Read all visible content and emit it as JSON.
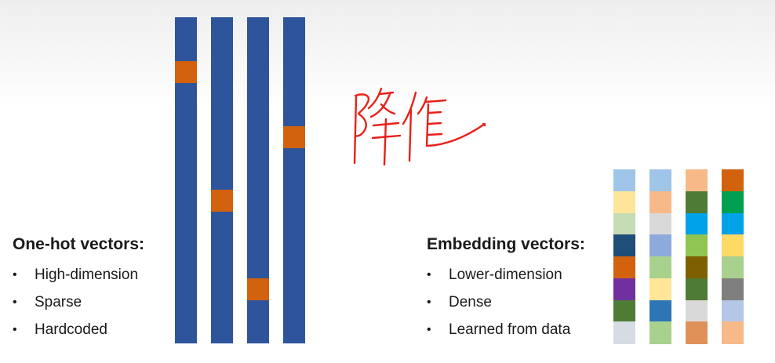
{
  "onehot": {
    "title": "One-hot vectors:",
    "bullets": [
      "High-dimension",
      "Sparse",
      "Hardcoded"
    ],
    "base_color": "#2e549b",
    "hot_color": "#d3620e",
    "hot_positions": [
      0.135,
      0.53,
      0.8,
      0.335
    ]
  },
  "embedding": {
    "title": "Embedding vectors:",
    "bullets": [
      "Lower-dimension",
      "Dense",
      "Learned from data"
    ],
    "columns": [
      [
        "#9fc5e8",
        "#ffe599",
        "#c6dcb4",
        "#1f4e79",
        "#d3620e",
        "#7030a0",
        "#4f7c34",
        "#d6dce4"
      ],
      [
        "#9fc5e8",
        "#f8b988",
        "#d9d9d9",
        "#8eaadb",
        "#a9d18e",
        "#ffe699",
        "#2e75b6",
        "#a9d18e"
      ],
      [
        "#f8b988",
        "#4f7c34",
        "#00a2e8",
        "#8fc550",
        "#7f6000",
        "#4f7c34",
        "#d9d9d9",
        "#df9159"
      ],
      [
        "#d3620e",
        "#00a050",
        "#00a2e8",
        "#ffd966",
        "#a9d18e",
        "#7f7f7f",
        "#b4c7e7",
        "#f8b988"
      ]
    ]
  },
  "annotation": {
    "color": "#e8201a"
  }
}
